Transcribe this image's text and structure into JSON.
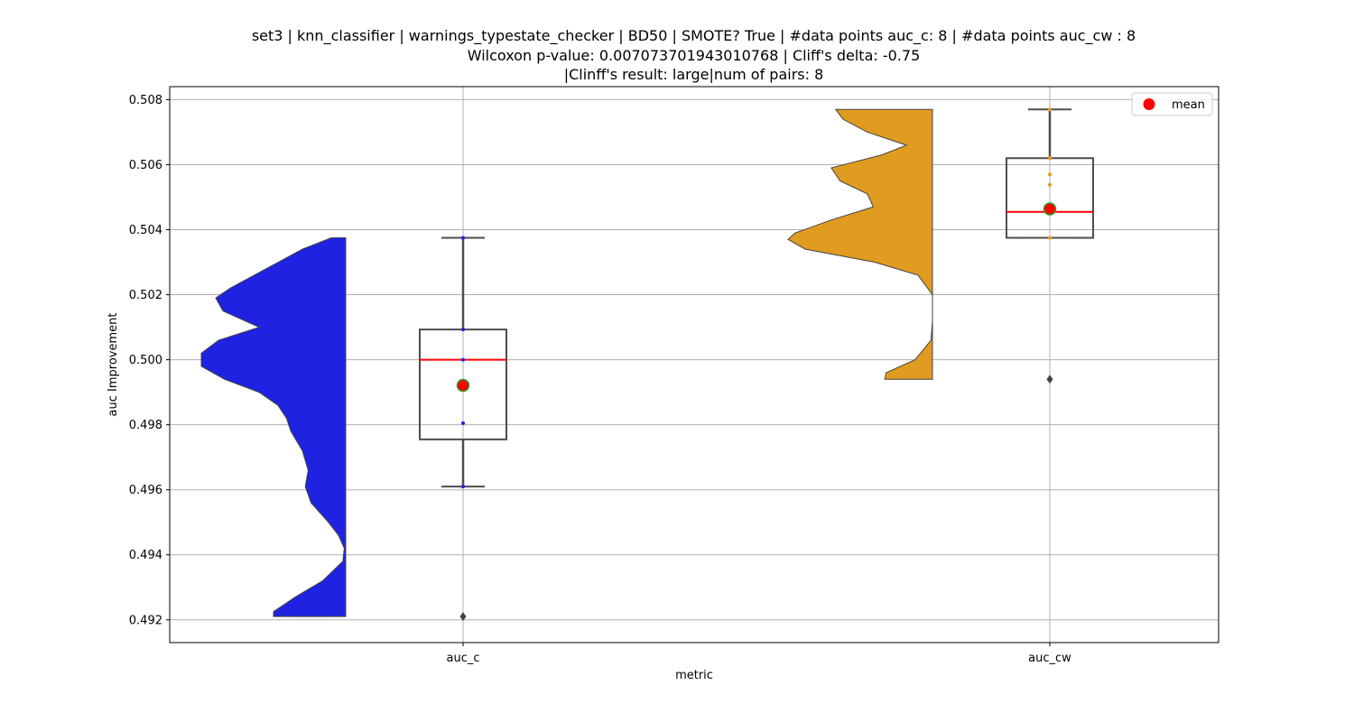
{
  "title": {
    "line1": "set3 | knn_classifier | warnings_typestate_checker | BD50 | SMOTE? True | #data points auc_c: 8 | #data points auc_cw : 8",
    "line2": "Wilcoxon p-value: 0.007073701943010768 | Cliff's delta: -0.75",
    "line3": "|Clinff's result: large|num of pairs: 8"
  },
  "chart_data": {
    "type": "violin+box",
    "title": "set3 | knn_classifier | warnings_typestate_checker | BD50 | SMOTE? True | #data points auc_c: 8 | #data points auc_cw : 8\nWilcoxon p-value: 0.007073701943010768 | Cliff's delta: -0.75\n|Clinff's result: large|num of pairs: 8",
    "xlabel": "metric",
    "ylabel": "auc Improvement",
    "ylim": [
      0.4913,
      0.5084
    ],
    "yticks": [
      "0.492",
      "0.494",
      "0.496",
      "0.498",
      "0.500",
      "0.502",
      "0.504",
      "0.506",
      "0.508"
    ],
    "categories": [
      "auc_c",
      "auc_cw"
    ],
    "grid": true,
    "legend": {
      "position": "top-right",
      "entries": [
        "mean"
      ]
    },
    "series": [
      {
        "category": "auc_c",
        "violin_color": "#1f22e0",
        "point_color": "#1f22e0",
        "violin_density": [
          [
            0.50375,
            0.1
          ],
          [
            0.5034,
            0.3
          ],
          [
            0.5028,
            0.55
          ],
          [
            0.5022,
            0.8
          ],
          [
            0.5019,
            0.9
          ],
          [
            0.5015,
            0.85
          ],
          [
            0.501,
            0.6
          ],
          [
            0.5006,
            0.88
          ],
          [
            0.5002,
            1.0
          ],
          [
            0.4998,
            1.0
          ],
          [
            0.4994,
            0.84
          ],
          [
            0.499,
            0.6
          ],
          [
            0.4986,
            0.47
          ],
          [
            0.4982,
            0.41
          ],
          [
            0.4978,
            0.38
          ],
          [
            0.4972,
            0.3
          ],
          [
            0.4966,
            0.26
          ],
          [
            0.4961,
            0.28
          ],
          [
            0.4956,
            0.24
          ],
          [
            0.495,
            0.12
          ],
          [
            0.4946,
            0.05
          ],
          [
            0.4942,
            0.01
          ],
          [
            0.4938,
            0.02
          ],
          [
            0.4932,
            0.16
          ],
          [
            0.4927,
            0.35
          ],
          [
            0.49225,
            0.5
          ],
          [
            0.4921,
            0.5
          ]
        ],
        "box": {
          "q1": 0.49755,
          "median": 0.5,
          "q3": 0.50093,
          "whisker_low": 0.4961,
          "whisker_high": 0.50375
        },
        "mean": 0.49921,
        "outliers": [
          0.4921
        ],
        "points": [
          0.50375,
          0.50093,
          0.5,
          0.49805,
          0.4961
        ]
      },
      {
        "category": "auc_cw",
        "violin_color": "#e09c20",
        "point_color": "#e09c20",
        "violin_density": [
          [
            0.5077,
            0.67
          ],
          [
            0.5074,
            0.62
          ],
          [
            0.507,
            0.45
          ],
          [
            0.5066,
            0.18
          ],
          [
            0.5063,
            0.35
          ],
          [
            0.5059,
            0.7
          ],
          [
            0.5055,
            0.64
          ],
          [
            0.5051,
            0.45
          ],
          [
            0.5047,
            0.41
          ],
          [
            0.5043,
            0.7
          ],
          [
            0.5039,
            0.95
          ],
          [
            0.5037,
            1.0
          ],
          [
            0.5034,
            0.88
          ],
          [
            0.503,
            0.4
          ],
          [
            0.5026,
            0.1
          ],
          [
            0.502,
            0.0
          ],
          [
            0.5012,
            0.0
          ],
          [
            0.5006,
            0.01
          ],
          [
            0.5,
            0.12
          ],
          [
            0.4996,
            0.32
          ],
          [
            0.4994,
            0.33
          ]
        ],
        "box": {
          "q1": 0.50375,
          "median": 0.50455,
          "q3": 0.5062,
          "whisker_low": 0.50375,
          "whisker_high": 0.5077
        },
        "mean": 0.50464,
        "outliers": [
          0.4994
        ],
        "points": [
          0.5077,
          0.5062,
          0.5057,
          0.50538,
          0.50455,
          0.50375
        ]
      }
    ]
  },
  "colors": {
    "median": "#ff0000",
    "mean_fill": "#ff0000",
    "mean_edge": "#2ca02c",
    "box_edge": "#4d4d4d",
    "grid": "#b0b0b0"
  }
}
